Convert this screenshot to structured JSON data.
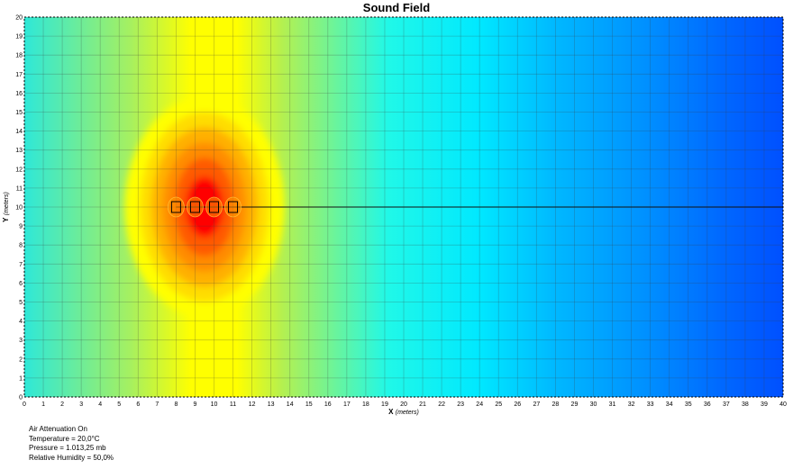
{
  "chart_data": {
    "type": "heatmap",
    "title": "Sound Field",
    "xlabel": "X",
    "xlabel_unit": "(meters)",
    "ylabel": "Y",
    "ylabel_unit": "(meters)",
    "xlim": [
      0,
      40
    ],
    "ylim": [
      0,
      20
    ],
    "x_ticks": [
      0,
      1,
      2,
      3,
      4,
      5,
      6,
      7,
      8,
      9,
      10,
      11,
      12,
      13,
      14,
      15,
      16,
      17,
      18,
      19,
      20,
      21,
      22,
      23,
      24,
      25,
      26,
      27,
      28,
      29,
      30,
      31,
      32,
      33,
      34,
      35,
      36,
      37,
      38,
      39,
      40
    ],
    "y_ticks": [
      0,
      1,
      2,
      3,
      4,
      5,
      6,
      7,
      8,
      9,
      10,
      11,
      12,
      13,
      14,
      15,
      16,
      17,
      18,
      19,
      20
    ],
    "grid": true,
    "sources": [
      {
        "x": 8,
        "y": 10
      },
      {
        "x": 9,
        "y": 10
      },
      {
        "x": 10,
        "y": 10
      },
      {
        "x": 11,
        "y": 10
      }
    ],
    "receiver_line": {
      "x_start": 8,
      "x_end": 40,
      "y": 10
    },
    "colors": {
      "max": "#ff0000",
      "high": "#ff8c00",
      "mid": "#ffff00",
      "low": "#00ffff",
      "min": "#0050ff"
    }
  },
  "info": {
    "air_attenuation": "Air Attenuation On",
    "temperature": "Temperature = 20,0°C",
    "pressure": "Pressure = 1.013,25  mb",
    "humidity": "Relative Humidity = 50,0%"
  }
}
